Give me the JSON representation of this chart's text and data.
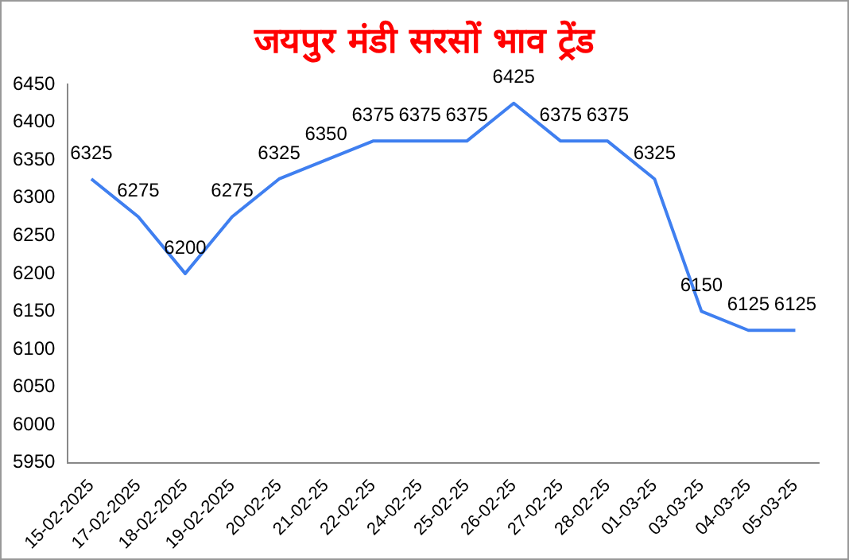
{
  "chart_data": {
    "type": "line",
    "title": "जयपुर मंडी सरसों भाव ट्रेंड",
    "categories": [
      "15-02-2025",
      "17-02-2025",
      "18-02-2025",
      "19-02-2025",
      "20-02-25",
      "21-02-25",
      "22-02-25",
      "24-02-25",
      "25-02-25",
      "26-02-25",
      "27-02-25",
      "28-02-25",
      "01-03-25",
      "03-03-25",
      "04-03-25",
      "05-03-25"
    ],
    "values": [
      6325,
      6275,
      6200,
      6275,
      6325,
      6350,
      6375,
      6375,
      6375,
      6425,
      6375,
      6375,
      6325,
      6150,
      6125,
      6125
    ],
    "color": "#3f7ff0",
    "ylim": [
      5950,
      6450
    ],
    "yticks": [
      5950,
      6000,
      6050,
      6100,
      6150,
      6200,
      6250,
      6300,
      6350,
      6400,
      6450
    ],
    "grid": false,
    "legend": false,
    "marker": "none",
    "line_style": "solid",
    "data_labels": true
  }
}
